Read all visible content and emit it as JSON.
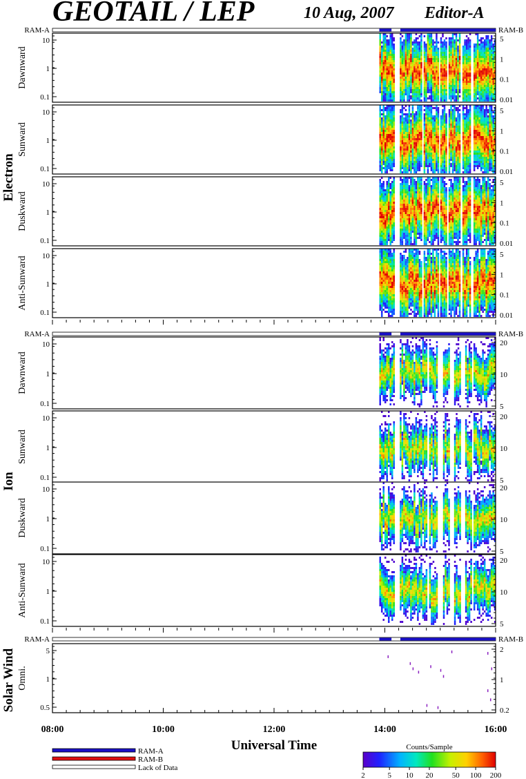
{
  "header": {
    "title": "GEOTAIL / LEP",
    "date": "10 Aug, 2007",
    "editor": "Editor-A"
  },
  "colors": {
    "ram_a": "#1a10c8",
    "ram_b": "#e01010",
    "lack_of_data": "#ffffff",
    "frame": "#000000"
  },
  "mode_bar": {
    "left_label": "RAM-A",
    "right_label": "RAM-B"
  },
  "chart_data": [
    {
      "type": "heatmap",
      "group": "Electron",
      "panels": [
        {
          "label": "Dawnward",
          "left_ticks": [
            "10",
            "1",
            "0.1"
          ],
          "right_ticks": [
            "5",
            "1",
            "0.1",
            "0.01"
          ]
        },
        {
          "label": "Sunward",
          "left_ticks": [
            "10",
            "1",
            "0.1"
          ],
          "right_ticks": [
            "5",
            "1",
            "0.1",
            "0.01"
          ]
        },
        {
          "label": "Duskward",
          "left_ticks": [
            "10",
            "1",
            "0.1"
          ],
          "right_ticks": [
            "5",
            "1",
            "0.1",
            "0.01"
          ]
        },
        {
          "label": "Anti-Sunward",
          "left_ticks": [
            "10",
            "1",
            "0.1"
          ],
          "right_ticks": [
            "5",
            "1",
            "0.1",
            "0.01"
          ]
        }
      ],
      "data_segments_hours": [
        [
          13.9,
          14.15
        ],
        [
          14.27,
          14.65
        ],
        [
          14.7,
          14.95
        ],
        [
          15.0,
          15.1
        ],
        [
          15.15,
          15.35
        ],
        [
          15.4,
          15.55
        ],
        [
          15.6,
          16.0
        ]
      ],
      "mode_ram_a_hours": [
        [
          13.9,
          14.12
        ],
        [
          14.28,
          16.0
        ]
      ]
    },
    {
      "type": "heatmap",
      "group": "Ion",
      "panels": [
        {
          "label": "Dawnward",
          "left_ticks": [
            "10",
            "1",
            "0.1"
          ],
          "right_ticks": [
            "20",
            "10",
            "5"
          ]
        },
        {
          "label": "Sunward",
          "left_ticks": [
            "10",
            "1",
            "0.1"
          ],
          "right_ticks": [
            "20",
            "10",
            "5"
          ]
        },
        {
          "label": "Duskward",
          "left_ticks": [
            "10",
            "1",
            "0.1"
          ],
          "right_ticks": [
            "20",
            "10",
            "5"
          ]
        },
        {
          "label": "Anti-Sunward",
          "left_ticks": [
            "10",
            "1",
            "0.1"
          ],
          "right_ticks": [
            "20",
            "10",
            "5"
          ]
        }
      ],
      "data_segments_hours": [
        [
          13.9,
          14.15
        ],
        [
          14.27,
          14.55
        ],
        [
          14.55,
          14.75
        ],
        [
          14.8,
          14.95
        ],
        [
          15.05,
          15.15
        ],
        [
          15.25,
          15.35
        ],
        [
          15.45,
          15.55
        ],
        [
          15.6,
          16.0
        ]
      ],
      "mode_ram_a_hours": [
        [
          13.9,
          14.12
        ],
        [
          14.28,
          16.0
        ]
      ]
    },
    {
      "type": "scatter",
      "group": "Solar Wind",
      "panels": [
        {
          "label": "Omni.",
          "left_ticks": [
            "5",
            "1",
            "0.5"
          ],
          "right_ticks": [
            "2",
            "1",
            "0.2"
          ]
        }
      ],
      "points_hours": [
        [
          14.05,
          4.5
        ],
        [
          14.45,
          3.0
        ],
        [
          14.5,
          2.2
        ],
        [
          14.6,
          1.8
        ],
        [
          14.75,
          0.25
        ],
        [
          14.82,
          2.5
        ],
        [
          14.95,
          0.22
        ],
        [
          15.0,
          2.0
        ],
        [
          15.05,
          1.4
        ],
        [
          15.2,
          6.0
        ],
        [
          15.85,
          5.5
        ],
        [
          15.92,
          2.2
        ],
        [
          15.85,
          0.6
        ],
        [
          15.9,
          0.35
        ]
      ],
      "mode_ram_a_hours": [
        [
          13.9,
          14.12
        ],
        [
          14.28,
          16.0
        ]
      ]
    }
  ],
  "time_axis": {
    "start_hour": 8,
    "end_hour": 16,
    "labels": [
      "08:00",
      "10:00",
      "12:00",
      "14:00",
      "16:00"
    ],
    "label_hours": [
      8,
      10,
      12,
      14,
      16
    ],
    "title": "Universal Time"
  },
  "legend": {
    "items": [
      {
        "label": "RAM-A",
        "color": "#1a10c8"
      },
      {
        "label": "RAM-B",
        "color": "#e01010"
      },
      {
        "label": "Lack of Data",
        "color": "#ffffff"
      }
    ]
  },
  "colorbar": {
    "title": "Counts/Sample",
    "ticks": [
      "2",
      "5",
      "10",
      "20",
      "50",
      "100",
      "200"
    ],
    "tick_values": [
      2,
      5,
      10,
      20,
      50,
      100,
      200
    ],
    "min": 2,
    "max": 200
  }
}
